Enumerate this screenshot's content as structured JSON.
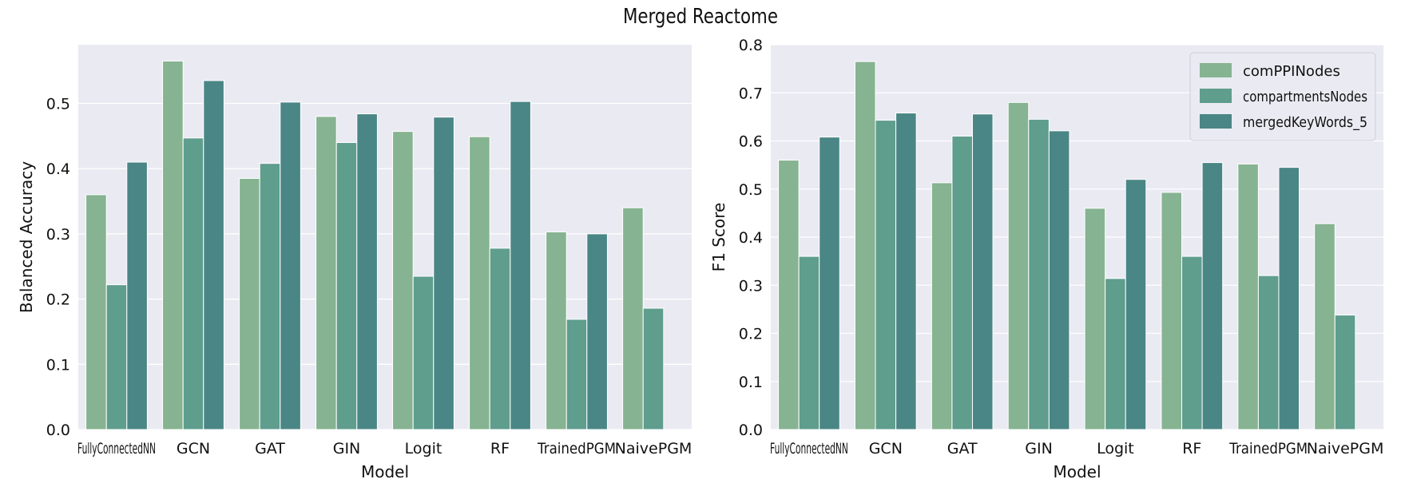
{
  "figure": {
    "title": "Merged Reactome"
  },
  "chart_data": [
    {
      "type": "bar",
      "title": "",
      "xlabel": "Model",
      "ylabel": "Balanced Accuracy",
      "ylim": [
        0,
        0.59
      ],
      "yticks": [
        0.0,
        0.1,
        0.2,
        0.3,
        0.4,
        0.5
      ],
      "yticklabels": [
        "0.0",
        "0.1",
        "0.2",
        "0.3",
        "0.4",
        "0.5"
      ],
      "grid": true,
      "categories": [
        "FullyConnectedNN",
        "GCN",
        "GAT",
        "GIN",
        "Logit",
        "RF",
        "TrainedPGM",
        "NaivePGM"
      ],
      "series": [
        {
          "name": "comPPINodes",
          "color": "#86b391",
          "values": [
            0.36,
            0.565,
            0.385,
            0.48,
            0.457,
            0.449,
            0.303,
            0.34
          ]
        },
        {
          "name": "compartmentsNodes",
          "color": "#5f9d8d",
          "values": [
            0.222,
            0.447,
            0.408,
            0.44,
            0.235,
            0.278,
            0.169,
            0.186
          ]
        },
        {
          "name": "mergedKeyWords_5",
          "color": "#4a8685",
          "values": [
            0.41,
            0.535,
            0.502,
            0.484,
            0.479,
            0.503,
            0.3,
            null
          ]
        }
      ]
    },
    {
      "type": "bar",
      "title": "",
      "xlabel": "Model",
      "ylabel": "F1 Score",
      "ylim": [
        0,
        0.8
      ],
      "yticks": [
        0.0,
        0.1,
        0.2,
        0.3,
        0.4,
        0.5,
        0.6,
        0.7,
        0.8
      ],
      "yticklabels": [
        "0.0",
        "0.1",
        "0.2",
        "0.3",
        "0.4",
        "0.5",
        "0.6",
        "0.7",
        "0.8"
      ],
      "grid": true,
      "legend": "top-right",
      "categories": [
        "FullyConnectedNN",
        "GCN",
        "GAT",
        "GIN",
        "Logit",
        "RF",
        "TrainedPGM",
        "NaivePGM"
      ],
      "series": [
        {
          "name": "comPPINodes",
          "color": "#86b391",
          "values": [
            0.56,
            0.765,
            0.513,
            0.68,
            0.46,
            0.493,
            0.552,
            0.428
          ]
        },
        {
          "name": "compartmentsNodes",
          "color": "#5f9d8d",
          "values": [
            0.36,
            0.643,
            0.61,
            0.645,
            0.314,
            0.36,
            0.32,
            0.238
          ]
        },
        {
          "name": "mergedKeyWords_5",
          "color": "#4a8685",
          "values": [
            0.608,
            0.658,
            0.656,
            0.621,
            0.52,
            0.555,
            0.545,
            null
          ]
        }
      ]
    }
  ]
}
